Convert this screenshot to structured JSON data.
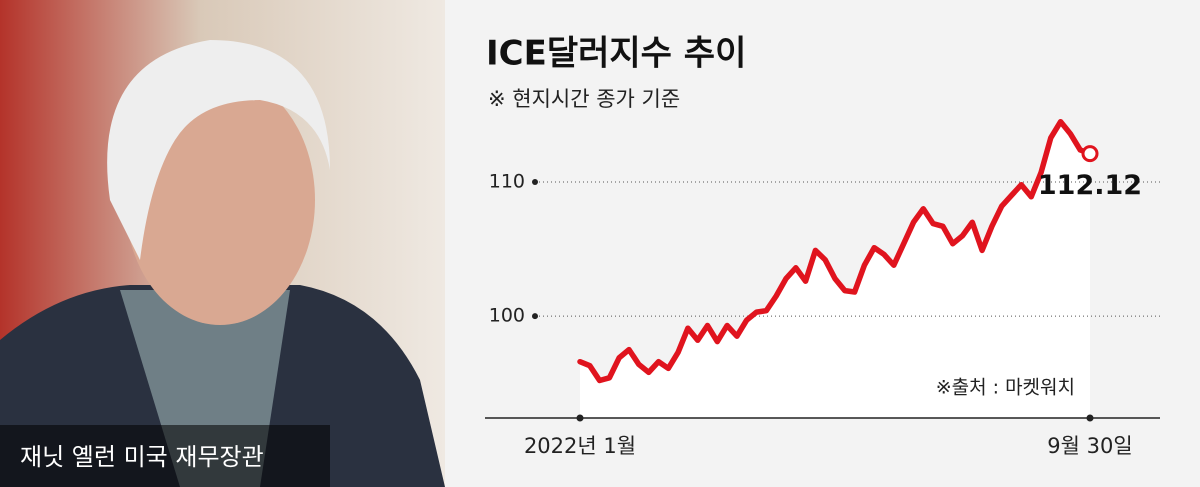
{
  "photo_caption": "재닛 옐런 미국 재무장관",
  "chart_data": {
    "type": "line",
    "title": "ICE달러지수 추이",
    "subtitle": "※ 현지시간 종가 기준",
    "source": "※출처 : 마켓워치",
    "categories": [
      "2022년 1월",
      null,
      null,
      null,
      null,
      null,
      null,
      null,
      null,
      null,
      null,
      null,
      null,
      null,
      null,
      null,
      null,
      null,
      null,
      null,
      null,
      null,
      null,
      null,
      null,
      null,
      null,
      null,
      null,
      null,
      null,
      null,
      null,
      null,
      null,
      null,
      null,
      null,
      null,
      null,
      null,
      null,
      null,
      null,
      null,
      null,
      null,
      null,
      null,
      null,
      null,
      null,
      "9월 30일"
    ],
    "values": [
      96.6,
      96.3,
      95.2,
      95.4,
      96.9,
      97.5,
      96.4,
      95.8,
      96.6,
      96.1,
      97.3,
      99.1,
      98.2,
      99.3,
      98.1,
      99.3,
      98.5,
      99.7,
      100.3,
      100.4,
      101.5,
      102.8,
      103.6,
      102.6,
      104.9,
      104.2,
      102.8,
      101.9,
      101.8,
      103.8,
      105.1,
      104.6,
      103.8,
      105.4,
      107.0,
      108.0,
      106.9,
      106.7,
      105.4,
      106.0,
      107.0,
      104.9,
      106.7,
      108.2,
      109.0,
      109.8,
      108.9,
      110.7,
      113.3,
      114.5,
      113.6,
      112.4,
      112.12
    ],
    "color": "#e0141e",
    "ylim": [
      92.4,
      115
    ],
    "yticks": [
      100,
      110
    ],
    "grid": true
  }
}
